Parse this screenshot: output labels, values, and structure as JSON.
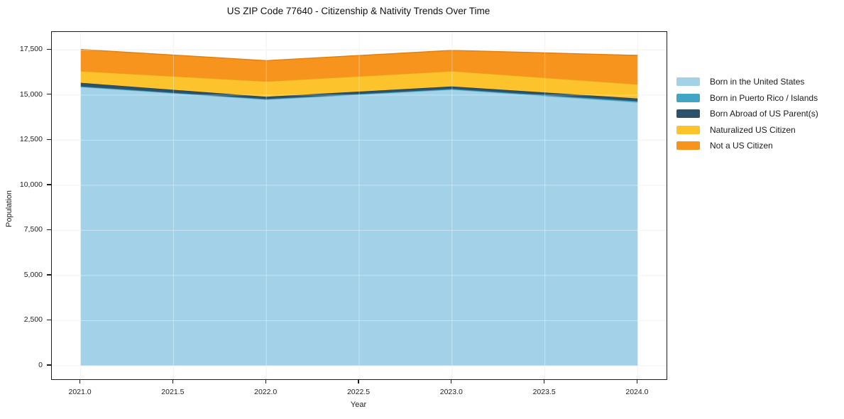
{
  "chart_data": {
    "type": "area",
    "stacked": true,
    "title": "US ZIP Code 77640 - Citizenship & Nativity Trends Over Time",
    "xlabel": "Year",
    "ylabel": "Population",
    "x": [
      2021,
      2022,
      2023,
      2024
    ],
    "series": [
      {
        "name": "Born in the United States",
        "color": "#a3d2e8",
        "edge": "#88bfda",
        "values": [
          15450,
          14750,
          15300,
          14600
        ]
      },
      {
        "name": "Born in Puerto Rico / Islands",
        "color": "#42a5c3",
        "edge": "#3895b2",
        "values": [
          30,
          30,
          40,
          60
        ]
      },
      {
        "name": "Born Abroad of US Parent(s)",
        "color": "#2b5268",
        "edge": "#223f50",
        "values": [
          200,
          130,
          140,
          150
        ]
      },
      {
        "name": "Naturalized US Citizen",
        "color": "#fdc32d",
        "edge": "#eba716",
        "values": [
          650,
          850,
          850,
          790
        ]
      },
      {
        "name": "Not a US Citizen",
        "color": "#f7941e",
        "edge": "#df7f10",
        "values": [
          1200,
          1150,
          1150,
          1600
        ]
      }
    ],
    "xlim": [
      2020.845,
      2024.155
    ],
    "ylim": [
      -750,
      18500
    ],
    "xticks": {
      "values": [
        2021.0,
        2021.5,
        2022.0,
        2022.5,
        2023.0,
        2023.5,
        2024.0
      ],
      "labels": [
        "2021.0",
        "2021.5",
        "2022.0",
        "2022.5",
        "2023.0",
        "2023.5",
        "2024.0"
      ]
    },
    "yticks": {
      "values": [
        0,
        2500,
        5000,
        7500,
        10000,
        12500,
        15000,
        17500
      ],
      "labels": [
        "0",
        "2,500",
        "5,000",
        "7,500",
        "10,000",
        "12,500",
        "15,000",
        "17,500"
      ]
    },
    "grid": true,
    "legend_position": "right-outside"
  }
}
